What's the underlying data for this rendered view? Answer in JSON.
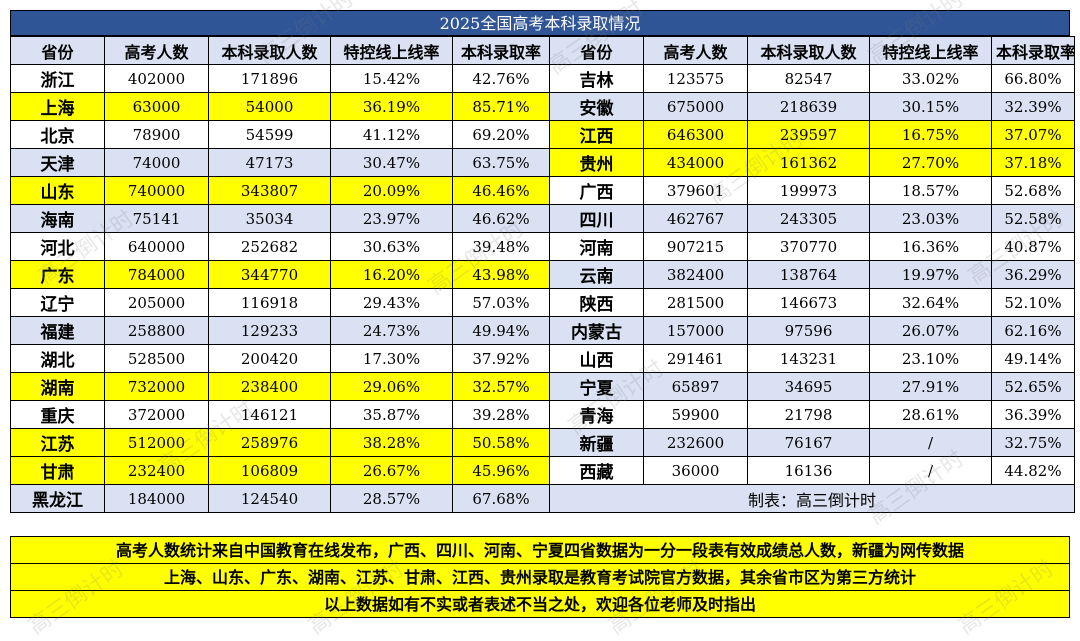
{
  "title": "2025全国高考本科录取情况",
  "headers": [
    "省份",
    "高考人数",
    "本科录取人数",
    "特控线上线率",
    "本科录取率",
    "省份",
    "高考人数",
    "本科录取人数",
    "特控线上线率",
    "本科录取率"
  ],
  "left": [
    {
      "p": "浙江",
      "c": "402000",
      "a": "171896",
      "t": "15.42%",
      "r": "42.76%",
      "hl": false
    },
    {
      "p": "上海",
      "c": "63000",
      "a": "54000",
      "t": "36.19%",
      "r": "85.71%",
      "hl": true
    },
    {
      "p": "北京",
      "c": "78900",
      "a": "54599",
      "t": "41.12%",
      "r": "69.20%",
      "hl": false
    },
    {
      "p": "天津",
      "c": "74000",
      "a": "47173",
      "t": "30.47%",
      "r": "63.75%",
      "hl": false
    },
    {
      "p": "山东",
      "c": "740000",
      "a": "343807",
      "t": "20.09%",
      "r": "46.46%",
      "hl": true
    },
    {
      "p": "海南",
      "c": "75141",
      "a": "35034",
      "t": "23.97%",
      "r": "46.62%",
      "hl": false
    },
    {
      "p": "河北",
      "c": "640000",
      "a": "252682",
      "t": "30.63%",
      "r": "39.48%",
      "hl": false
    },
    {
      "p": "广东",
      "c": "784000",
      "a": "344770",
      "t": "16.20%",
      "r": "43.98%",
      "hl": true
    },
    {
      "p": "辽宁",
      "c": "205000",
      "a": "116918",
      "t": "29.43%",
      "r": "57.03%",
      "hl": false
    },
    {
      "p": "福建",
      "c": "258800",
      "a": "129233",
      "t": "24.73%",
      "r": "49.94%",
      "hl": false
    },
    {
      "p": "湖北",
      "c": "528500",
      "a": "200420",
      "t": "17.30%",
      "r": "37.92%",
      "hl": false
    },
    {
      "p": "湖南",
      "c": "732000",
      "a": "238400",
      "t": "29.06%",
      "r": "32.57%",
      "hl": true
    },
    {
      "p": "重庆",
      "c": "372000",
      "a": "146121",
      "t": "35.87%",
      "r": "39.28%",
      "hl": false
    },
    {
      "p": "江苏",
      "c": "512000",
      "a": "258976",
      "t": "38.28%",
      "r": "50.58%",
      "hl": true
    },
    {
      "p": "甘肃",
      "c": "232400",
      "a": "106809",
      "t": "26.67%",
      "r": "45.96%",
      "hl": true
    },
    {
      "p": "黑龙江",
      "c": "184000",
      "a": "124540",
      "t": "28.57%",
      "r": "67.68%",
      "hl": false
    }
  ],
  "right": [
    {
      "p": "吉林",
      "c": "123575",
      "a": "82547",
      "t": "33.02%",
      "r": "66.80%",
      "hl": false
    },
    {
      "p": "安徽",
      "c": "675000",
      "a": "218639",
      "t": "30.15%",
      "r": "32.39%",
      "hl": false
    },
    {
      "p": "江西",
      "c": "646300",
      "a": "239597",
      "t": "16.75%",
      "r": "37.07%",
      "hl": true
    },
    {
      "p": "贵州",
      "c": "434000",
      "a": "161362",
      "t": "27.70%",
      "r": "37.18%",
      "hl": true
    },
    {
      "p": "广西",
      "c": "379601",
      "a": "199973",
      "t": "18.57%",
      "r": "52.68%",
      "hl": false
    },
    {
      "p": "四川",
      "c": "462767",
      "a": "243305",
      "t": "23.03%",
      "r": "52.58%",
      "hl": false
    },
    {
      "p": "河南",
      "c": "907215",
      "a": "370770",
      "t": "16.36%",
      "r": "40.87%",
      "hl": false
    },
    {
      "p": "云南",
      "c": "382400",
      "a": "138764",
      "t": "19.97%",
      "r": "36.29%",
      "hl": false
    },
    {
      "p": "陕西",
      "c": "281500",
      "a": "146673",
      "t": "32.64%",
      "r": "52.10%",
      "hl": false
    },
    {
      "p": "内蒙古",
      "c": "157000",
      "a": "97596",
      "t": "26.07%",
      "r": "62.16%",
      "hl": false
    },
    {
      "p": "山西",
      "c": "291461",
      "a": "143231",
      "t": "23.10%",
      "r": "49.14%",
      "hl": false
    },
    {
      "p": "宁夏",
      "c": "65897",
      "a": "34695",
      "t": "27.91%",
      "r": "52.65%",
      "hl": false
    },
    {
      "p": "青海",
      "c": "59900",
      "a": "21798",
      "t": "28.61%",
      "r": "36.39%",
      "hl": false
    },
    {
      "p": "新疆",
      "c": "232600",
      "a": "76167",
      "t": "/",
      "r": "32.75%",
      "hl": false
    },
    {
      "p": "西藏",
      "c": "36000",
      "a": "16136",
      "t": "/",
      "r": "44.82%",
      "hl": false
    }
  ],
  "credit": "制表：高三倒计时",
  "notes": [
    "高考人数统计来自中国教育在线发布，广西、四川、河南、宁夏四省数据为一分一段表有效成绩总人数，新疆为网传数据",
    "上海、山东、广东、湖南、江苏、甘肃、江西、贵州录取是教育考试院官方数据，其余省市区为第三方统计",
    "以上数据如有不实或者表述不当之处，欢迎各位老师及时指出"
  ],
  "watermark": "高三倒计时",
  "colors": {
    "header_bg": "#2f5597",
    "highlight": "#ffff00",
    "stripe": "#d9e1f2"
  }
}
